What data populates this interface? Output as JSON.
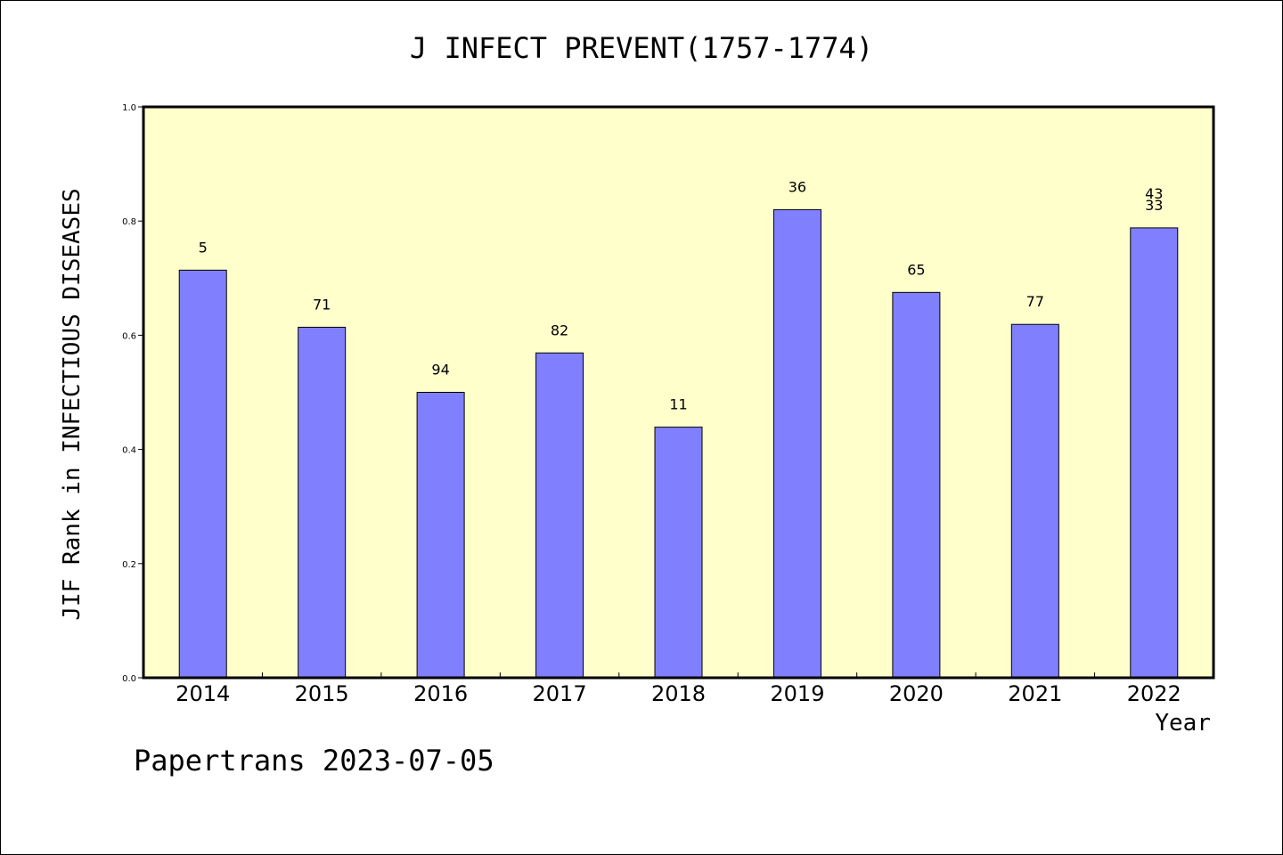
{
  "title": "J INFECT PREVENT(1757-1774)",
  "footer": "Papertrans 2023-07-05",
  "colors": {
    "plot_background": "#ffffcc",
    "bar_fill": "#8080ff",
    "bar_stroke": "#000000",
    "axis": "#000000"
  },
  "chart_data": {
    "type": "bar",
    "title": "J INFECT PREVENT(1757-1774)",
    "xlabel": "Year",
    "ylabel": "JIF Rank in INFECTIOUS DISEASES",
    "ylim": [
      0,
      1.0
    ],
    "yticks": [
      "0.0",
      "0.2",
      "0.4",
      "0.6",
      "0.8",
      "1.0"
    ],
    "grid": false,
    "categories": [
      "2014",
      "2015",
      "2016",
      "2017",
      "2018",
      "2019",
      "2020",
      "2021",
      "2022"
    ],
    "values": [
      0.714,
      0.614,
      0.5,
      0.569,
      0.439,
      0.82,
      0.675,
      0.619,
      0.788
    ],
    "bar_labels": [
      [
        "5"
      ],
      [
        "71"
      ],
      [
        "94"
      ],
      [
        "82"
      ],
      [
        "11"
      ],
      [
        "36"
      ],
      [
        "65"
      ],
      [
        "77"
      ],
      [
        "43",
        "33"
      ]
    ]
  }
}
